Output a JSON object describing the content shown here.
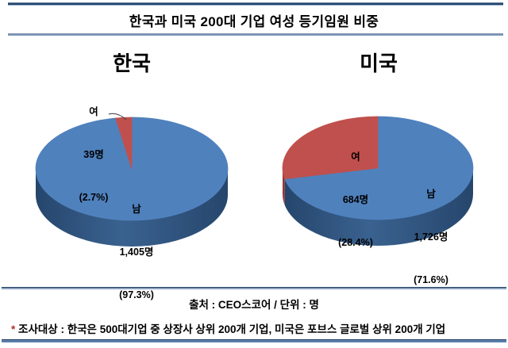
{
  "figure": {
    "title": "한국과 미국 200대 기업 여성 등기임원 비중",
    "source_label": "출처 : CEO스코어 / 단위 : 명",
    "footnote_marker": "*",
    "footnote_text": "조사대상 : 한국은 500대기업 중 상장사 상위 200개 기업, 미국은 포브스 글로벌 상위 200개 기업"
  },
  "colors": {
    "male": "#4f81bd",
    "female": "#c0504d",
    "male_side_dark": "#26466c",
    "male_side_light": "#3a6290",
    "female_side_dark": "#8e3432",
    "female_side_light": "#9e3b38",
    "rule_dark": "#1f3c5f",
    "rule_light": "#7d95b5"
  },
  "chart_data": [
    {
      "type": "pie",
      "region": "한국",
      "unit": "명",
      "legend_position": "none",
      "slices": [
        {
          "name": "남",
          "value": 1405,
          "pct": 97.3,
          "value_label": "1,405명",
          "pct_label": "(97.3%)",
          "color_key": "male"
        },
        {
          "name": "여",
          "value": 39,
          "pct": 2.7,
          "value_label": "39명",
          "pct_label": "(2.7%)",
          "color_key": "female"
        }
      ]
    },
    {
      "type": "pie",
      "region": "미국",
      "unit": "명",
      "legend_position": "none",
      "slices": [
        {
          "name": "남",
          "value": 1726,
          "pct": 71.6,
          "value_label": "1,726명",
          "pct_label": "(71.6%)",
          "color_key": "male"
        },
        {
          "name": "여",
          "value": 684,
          "pct": 28.4,
          "value_label": "684명",
          "pct_label": "(28.4%)",
          "color_key": "female"
        }
      ]
    }
  ]
}
